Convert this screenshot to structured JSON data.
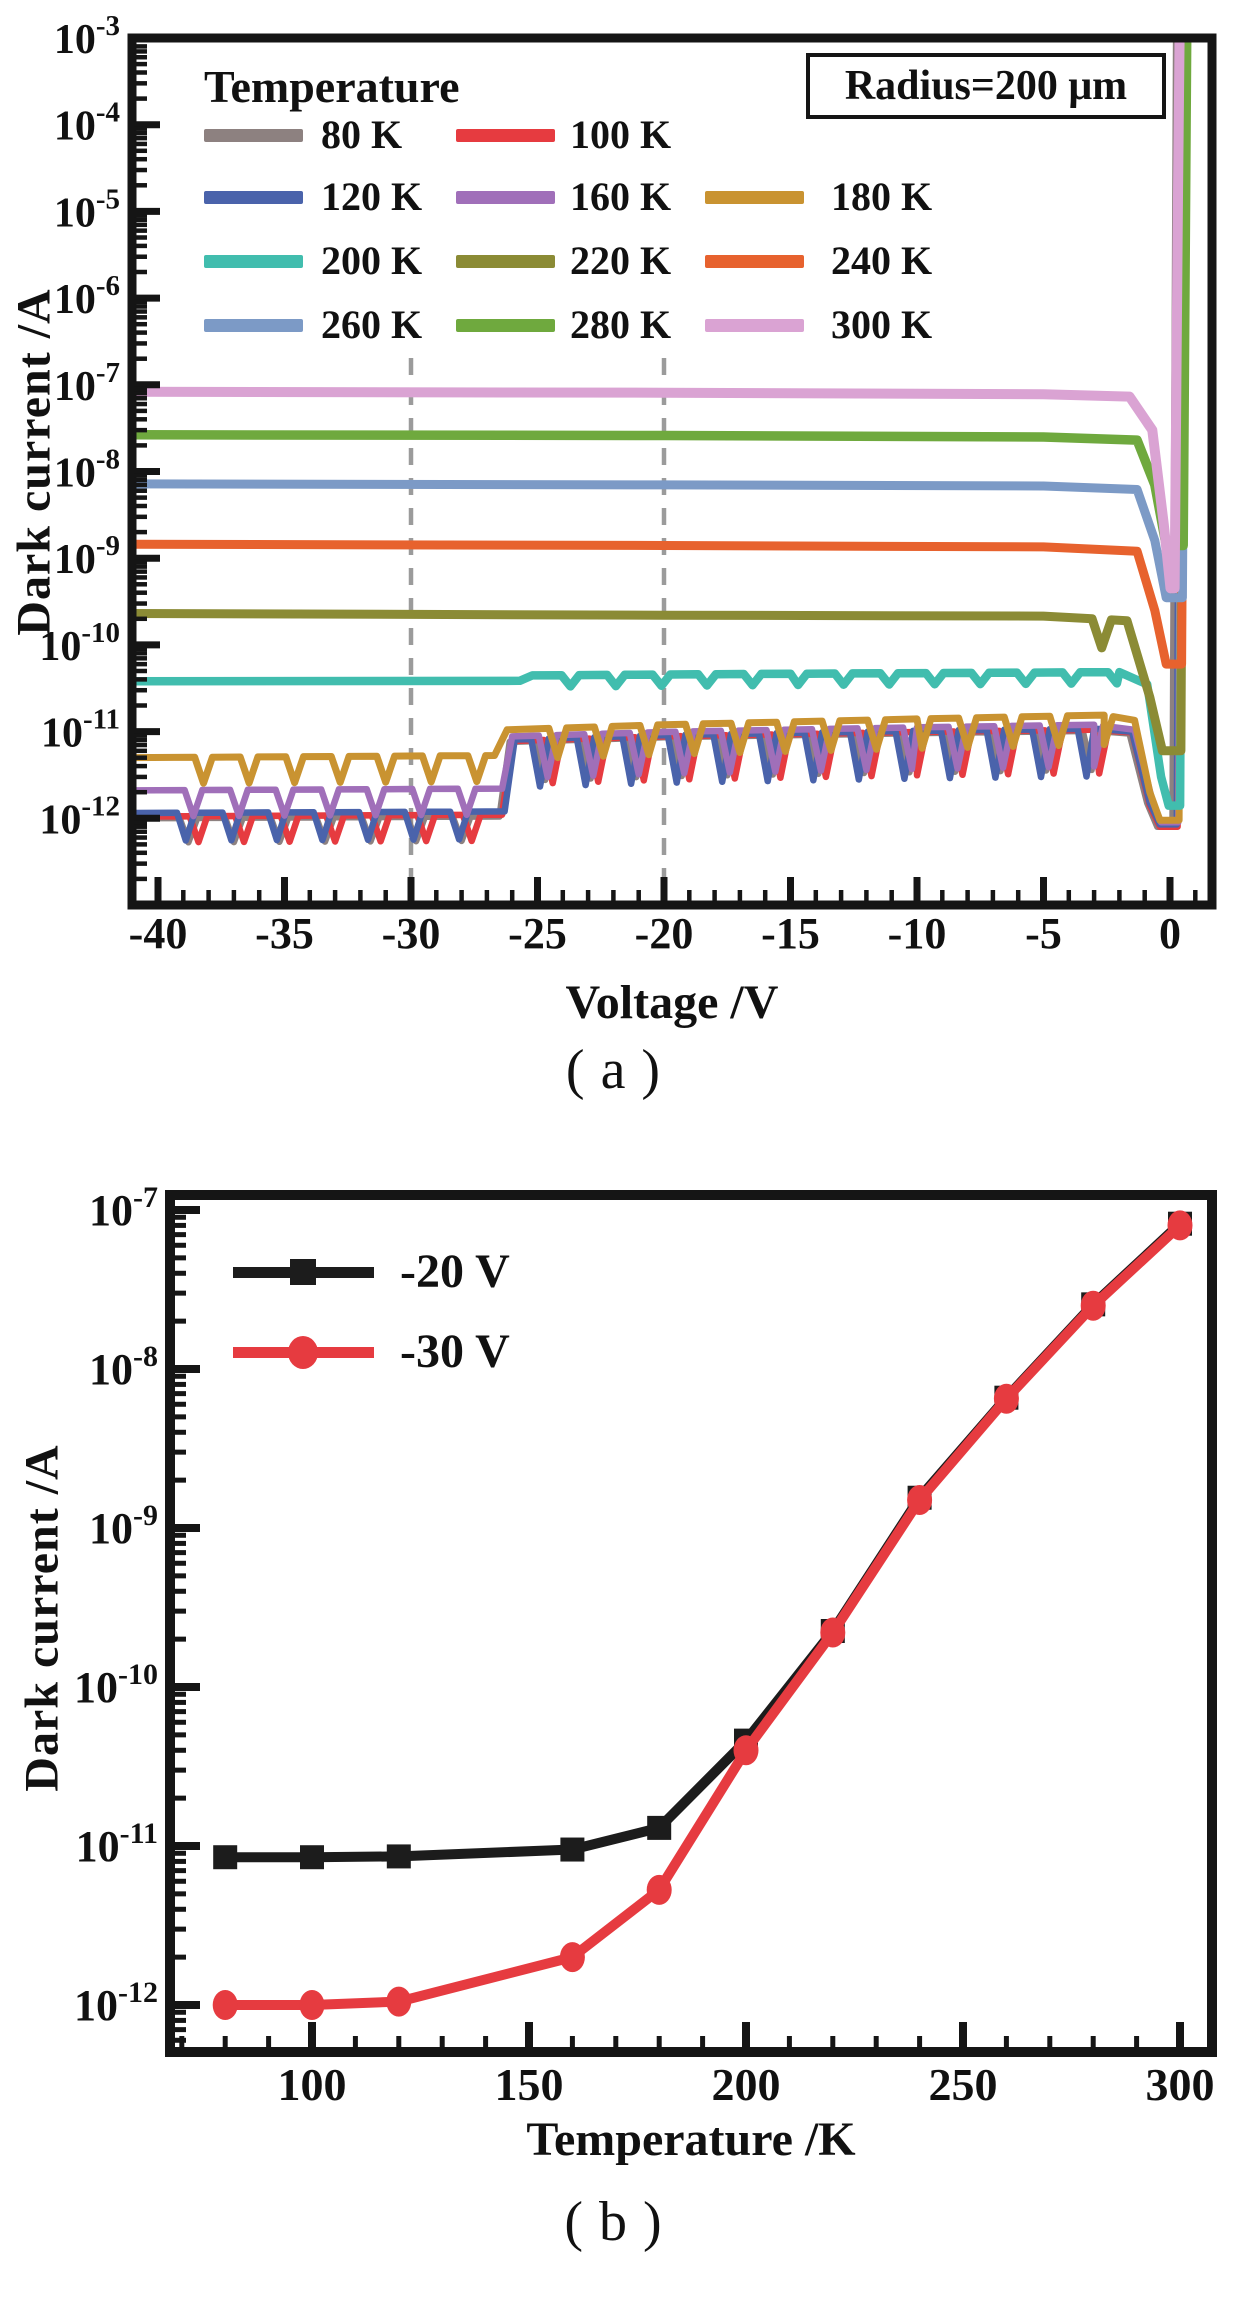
{
  "figure": {
    "panel_a_label": "(a)",
    "panel_b_label": "(b)"
  },
  "chart_data": [
    {
      "id": "a",
      "type": "line",
      "legend_title": "Temperature",
      "annotation": "Radius=200 μm",
      "xlabel": "Voltage /V",
      "ylabel": "Dark current /A",
      "x_major_ticks": [
        -40,
        -35,
        -30,
        -25,
        -20,
        -15,
        -10,
        -5,
        0
      ],
      "x_minor": {
        "start": -40,
        "end": 1,
        "step": 1
      },
      "y_tick_exponents": [
        -3,
        -4,
        -5,
        -6,
        -7,
        -8,
        -9,
        -10,
        -11,
        -12
      ],
      "xlim": [
        -41.2,
        1.66
      ],
      "ylim_exponents": [
        -3,
        -13
      ],
      "grid_on": true,
      "gridlines_x": [
        -30,
        -20
      ],
      "legend_position": "upper-left",
      "legend_rows": [
        [
          0,
          1
        ],
        [
          2,
          3,
          4
        ],
        [
          5,
          6,
          7
        ],
        [
          8,
          9,
          10
        ]
      ],
      "series": [
        {
          "name": "80 K",
          "color": "#8d8180",
          "width": 6.5,
          "points": [
            [
              -41.2,
              1e-12
            ],
            [
              -26.5,
              1.05e-12
            ],
            [
              -26.1,
              7.6e-12
            ],
            [
              -20,
              8.6e-12
            ],
            [
              -10,
              9.6e-12
            ],
            [
              -3,
              1.02e-11
            ],
            [
              -1.6,
              9.5e-12
            ],
            [
              -0.9,
              1.5e-12
            ],
            [
              -0.5,
              8e-13
            ],
            [
              0.1,
              8e-13
            ],
            [
              0.24,
              0.001
            ]
          ],
          "dips": [
            {
              "from": -38.8,
              "to": -27.2,
              "period": 1.8,
              "depth": 0.28
            },
            {
              "from": -24.7,
              "to": -2.4,
              "period": 1.8,
              "depth": 0.45
            }
          ]
        },
        {
          "name": "100 K",
          "color": "#e63b40",
          "width": 6.5,
          "points": [
            [
              -41.2,
              1.05e-12
            ],
            [
              -26.4,
              1.1e-12
            ],
            [
              -26.0,
              7.8e-12
            ],
            [
              -20,
              8.8e-12
            ],
            [
              -10,
              9.9e-12
            ],
            [
              -3,
              1.05e-11
            ],
            [
              -1.5,
              9.8e-12
            ],
            [
              -0.8,
              1.4e-12
            ],
            [
              -0.4,
              8e-13
            ],
            [
              0.3,
              8e-13
            ],
            [
              0.44,
              0.001
            ]
          ],
          "dips": [
            {
              "from": -38.4,
              "to": -27.0,
              "period": 1.8,
              "depth": 0.3
            },
            {
              "from": -24.4,
              "to": -2.2,
              "period": 1.8,
              "depth": 0.5
            }
          ]
        },
        {
          "name": "120 K",
          "color": "#4a63ab",
          "width": 6.5,
          "points": [
            [
              -41.2,
              1.15e-12
            ],
            [
              -26.3,
              1.2e-12
            ],
            [
              -25.9,
              8.1e-12
            ],
            [
              -20,
              9.1e-12
            ],
            [
              -10,
              1.02e-11
            ],
            [
              -3,
              1.08e-11
            ],
            [
              -1.5,
              1e-11
            ],
            [
              -0.8,
              1.5e-12
            ],
            [
              -0.4,
              8.5e-13
            ],
            [
              0.27,
              8.5e-13
            ],
            [
              0.41,
              0.001
            ]
          ],
          "dips": [
            {
              "from": -38.9,
              "to": -26.9,
              "period": 1.8,
              "depth": 0.32
            },
            {
              "from": -24.9,
              "to": -2.0,
              "period": 1.8,
              "depth": 0.55
            }
          ]
        },
        {
          "name": "160 K",
          "color": "#a06fb9",
          "width": 6.5,
          "points": [
            [
              -41.2,
              2.1e-12
            ],
            [
              -26.4,
              2.2e-12
            ],
            [
              -26.0,
              8.8e-12
            ],
            [
              -20,
              9.9e-12
            ],
            [
              -10,
              1.12e-11
            ],
            [
              -3,
              1.2e-11
            ],
            [
              -1.4,
              1.05e-11
            ],
            [
              -0.7,
              1.6e-12
            ],
            [
              -0.35,
              9e-13
            ],
            [
              0.33,
              9e-13
            ],
            [
              0.47,
              0.001
            ]
          ],
          "dips": [
            {
              "from": -38.6,
              "to": -27.0,
              "period": 1.8,
              "depth": 0.3
            },
            {
              "from": -24.6,
              "to": -2.1,
              "period": 1.8,
              "depth": 0.48
            }
          ]
        },
        {
          "name": "180 K",
          "color": "#c99331",
          "width": 7,
          "points": [
            [
              -41.2,
              5e-12
            ],
            [
              -26.7,
              5.3e-12
            ],
            [
              -26.2,
              1.05e-11
            ],
            [
              -20,
              1.2e-11
            ],
            [
              -10,
              1.4e-11
            ],
            [
              -2.6,
              1.55e-11
            ],
            [
              -1.4,
              1.35e-11
            ],
            [
              -0.8,
              2e-12
            ],
            [
              -0.4,
              9.5e-13
            ],
            [
              0.36,
              9.5e-13
            ],
            [
              0.5,
              0.001
            ]
          ],
          "dips": [
            {
              "from": -38.2,
              "to": -27.4,
              "period": 1.8,
              "depth": 0.3
            },
            {
              "from": -24.2,
              "to": -2.6,
              "period": 1.8,
              "depth": 0.34
            }
          ]
        },
        {
          "name": "200 K",
          "color": "#41bdae",
          "width": 8.5,
          "points": [
            [
              -41.2,
              3.8e-11
            ],
            [
              -25.7,
              3.85e-11
            ],
            [
              -25.2,
              4.45e-11
            ],
            [
              -15,
              4.65e-11
            ],
            [
              -2,
              4.85e-11
            ],
            [
              -0.9,
              3.5e-11
            ],
            [
              -0.35,
              3e-12
            ],
            [
              -0.05,
              1.4e-12
            ],
            [
              0.4,
              1.4e-12
            ],
            [
              0.54,
              0.001
            ]
          ],
          "dips": [
            {
              "from": -23.7,
              "to": -1.9,
              "period": 1.8,
              "depth": 0.13
            }
          ]
        },
        {
          "name": "220 K",
          "color": "#8b8b35",
          "width": 9,
          "points": [
            [
              -41.2,
              2.3e-10
            ],
            [
              -20,
              2.2e-10
            ],
            [
              -5,
              2.15e-10
            ],
            [
              -1.7,
              1.9e-10
            ],
            [
              -0.8,
              2.5e-11
            ],
            [
              -0.3,
              6e-12
            ],
            [
              0.43,
              6e-12
            ],
            [
              0.57,
              0.001
            ]
          ],
          "dips": [
            {
              "from": -2.7,
              "to": -2.7,
              "period": 9,
              "depth": 0.33,
              "halfwidth": 0.38
            }
          ]
        },
        {
          "name": "240 K",
          "color": "#e7622e",
          "width": 9,
          "points": [
            [
              -41.2,
              1.45e-09
            ],
            [
              -20,
              1.4e-09
            ],
            [
              -5,
              1.35e-09
            ],
            [
              -1.3,
              1.2e-09
            ],
            [
              -0.6,
              2.5e-10
            ],
            [
              -0.15,
              6e-11
            ],
            [
              0.46,
              6e-11
            ],
            [
              0.6,
              0.001
            ]
          ]
        },
        {
          "name": "260 K",
          "color": "#7c9ac6",
          "width": 9,
          "points": [
            [
              -41.2,
              7.2e-09
            ],
            [
              -20,
              7e-09
            ],
            [
              -5,
              6.8e-09
            ],
            [
              -1.3,
              6.2e-09
            ],
            [
              -0.6,
              1.6e-09
            ],
            [
              -0.15,
              3.5e-10
            ],
            [
              0.49,
              3.5e-10
            ],
            [
              0.63,
              0.001
            ]
          ]
        },
        {
          "name": "280 K",
          "color": "#6fa93e",
          "width": 9.5,
          "points": [
            [
              -41.2,
              2.65e-08
            ],
            [
              -20,
              2.6e-08
            ],
            [
              -5,
              2.5e-08
            ],
            [
              -1.3,
              2.3e-08
            ],
            [
              -0.6,
              7e-09
            ],
            [
              -0.15,
              1.4e-09
            ],
            [
              0.52,
              1.4e-09
            ],
            [
              0.66,
              0.001
            ]
          ]
        },
        {
          "name": "300 K",
          "color": "#daa3d3",
          "width": 10,
          "points": [
            [
              -41.2,
              8.3e-08
            ],
            [
              -20,
              8.1e-08
            ],
            [
              -5,
              7.8e-08
            ],
            [
              -1.6,
              7.3e-08
            ],
            [
              -0.7,
              3e-08
            ],
            [
              -0.25,
              2.5e-09
            ],
            [
              0.02,
              4.5e-10
            ],
            [
              0.18,
              4.5e-10
            ],
            [
              0.32,
              2e-05
            ],
            [
              0.38,
              0.001
            ]
          ]
        }
      ]
    },
    {
      "id": "b",
      "type": "line",
      "xlabel": "Temperature /K",
      "ylabel": "Dark current /A",
      "x_major_ticks": [
        100,
        150,
        200,
        250,
        300
      ],
      "x_minor": {
        "start": 70,
        "end": 300,
        "step": 10
      },
      "y_tick_exponents": [
        -7,
        -8,
        -9,
        -10,
        -11,
        -12
      ],
      "xlim": [
        67,
        307
      ],
      "ylim_exponents": [
        -6.9,
        -12.3
      ],
      "grid_on": false,
      "legend_position": "upper-left",
      "series": [
        {
          "name": "-20 V",
          "color": "#1c1c1c",
          "marker": "square",
          "width": 10,
          "x": [
            80,
            100,
            120,
            160,
            180,
            200,
            220,
            240,
            260,
            280,
            300
          ],
          "y": [
            8.5e-12,
            8.5e-12,
            8.6e-12,
            9.5e-12,
            1.3e-11,
            4.6e-11,
            2.25e-10,
            1.55e-09,
            6.6e-09,
            2.55e-08,
            8.2e-08
          ]
        },
        {
          "name": "-30 V",
          "color": "#e63b40",
          "marker": "circle",
          "width": 10,
          "x": [
            80,
            100,
            120,
            160,
            180,
            200,
            220,
            240,
            260,
            280,
            300
          ],
          "y": [
            1e-12,
            1e-12,
            1.05e-12,
            2e-12,
            5.3e-12,
            4e-11,
            2.2e-10,
            1.5e-09,
            6.5e-09,
            2.5e-08,
            8e-08
          ]
        }
      ]
    }
  ]
}
